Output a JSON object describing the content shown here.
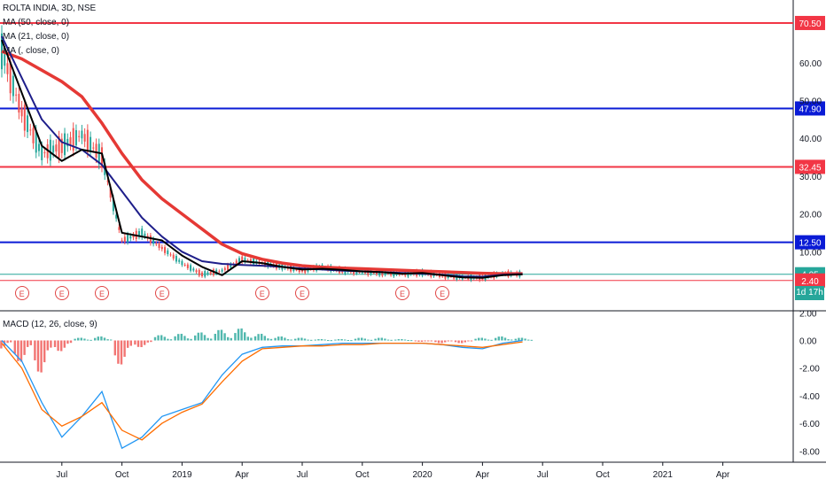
{
  "header": {
    "symbol_line": "ROLTA INDIA, 3D, NSE",
    "indicators": [
      "MA (50, close, 0)",
      "MA (21, close, 0)",
      "MA (, close, 0)"
    ]
  },
  "macd_panel": {
    "label": "MACD (12, 26, close, 9)"
  },
  "earnings_marker_label": "E",
  "earnings_markers": [
    "2018-05",
    "2018-07",
    "2018-09",
    "2018-12",
    "2019-05",
    "2019-07",
    "2019-12",
    "2020-02"
  ],
  "countdown_tag": {
    "text": "1d 17h",
    "color": "#26a69a"
  },
  "colors": {
    "red_line": "#f23645",
    "blue_line": "#0a1bd6",
    "ma_slow": "#e53935",
    "ma_mid": "#1e1e8a",
    "ma_fast": "#000000",
    "up": "#26a69a",
    "down": "#ef5350"
  },
  "chart_data": [
    {
      "type": "line",
      "title": "ROLTA INDIA, 3D, NSE",
      "y_axis_ticks": [
        "60.00",
        "50.00",
        "40.00",
        "30.00",
        "20.00",
        "10.00"
      ],
      "ylim": [
        -2.4,
        75
      ],
      "x_axis_ticks": [
        "Jul",
        "Oct",
        "2019",
        "Apr",
        "Jul",
        "Oct",
        "2020",
        "Apr",
        "Jul",
        "Oct",
        "2021",
        "Apr"
      ],
      "horizontal_levels": [
        {
          "value": 70.5,
          "label": "70.50",
          "color": "#f23645"
        },
        {
          "value": 47.9,
          "label": "47.90",
          "color": "#0a1bd6"
        },
        {
          "value": 32.45,
          "label": "32.45",
          "color": "#f23645"
        },
        {
          "value": 12.5,
          "label": "12.50",
          "color": "#0a1bd6"
        },
        {
          "value": 4.05,
          "label": "4.05",
          "color": "#26a69a"
        },
        {
          "value": 2.4,
          "label": "2.40",
          "color": "#f23645"
        }
      ],
      "series": [
        {
          "name": "MA (50, close, 0)",
          "color": "#e53935",
          "x": [
            "2018-04",
            "2018-05",
            "2018-06",
            "2018-07",
            "2018-08",
            "2018-09",
            "2018-10",
            "2018-11",
            "2018-12",
            "2019-01",
            "2019-02",
            "2019-03",
            "2019-04",
            "2019-05",
            "2019-06",
            "2019-07",
            "2019-08",
            "2019-09",
            "2019-10",
            "2019-11",
            "2019-12",
            "2020-01",
            "2020-02",
            "2020-03",
            "2020-04",
            "2020-05",
            "2020-06"
          ],
          "y": [
            63,
            61,
            58,
            55,
            51,
            44,
            36,
            29,
            24,
            20,
            16,
            12,
            9.5,
            8.0,
            7.0,
            6.3,
            5.9,
            5.7,
            5.5,
            5.3,
            5.1,
            4.9,
            4.7,
            4.5,
            4.3,
            4.2,
            4.2
          ]
        },
        {
          "name": "MA (21, close, 0)",
          "color": "#1e1e8a",
          "x": [
            "2018-04",
            "2018-05",
            "2018-06",
            "2018-07",
            "2018-08",
            "2018-09",
            "2018-10",
            "2018-11",
            "2018-12",
            "2019-01",
            "2019-02",
            "2019-03",
            "2019-04",
            "2019-05",
            "2019-06",
            "2019-07",
            "2019-08",
            "2019-09",
            "2019-10",
            "2019-11",
            "2019-12",
            "2020-01",
            "2020-02",
            "2020-03",
            "2020-04",
            "2020-05",
            "2020-06"
          ],
          "y": [
            67,
            56,
            45,
            39,
            37,
            33,
            26,
            19,
            14,
            10,
            7.5,
            6.8,
            6.5,
            6.3,
            6.0,
            5.6,
            5.3,
            5.0,
            4.8,
            4.6,
            4.4,
            4.2,
            3.9,
            3.5,
            3.4,
            3.9,
            4.1
          ]
        },
        {
          "name": "MA (, close, 0)",
          "color": "#000000",
          "x": [
            "2018-04",
            "2018-05",
            "2018-06",
            "2018-07",
            "2018-08",
            "2018-09",
            "2018-10",
            "2018-11",
            "2018-12",
            "2019-01",
            "2019-02",
            "2019-03",
            "2019-04",
            "2019-05",
            "2019-06",
            "2019-07",
            "2019-08",
            "2019-09",
            "2019-10",
            "2019-11",
            "2019-12",
            "2020-01",
            "2020-02",
            "2020-03",
            "2020-04",
            "2020-05",
            "2020-06"
          ],
          "y": [
            66,
            52,
            38,
            34,
            37,
            36,
            15,
            14,
            13,
            9.0,
            6.0,
            3.8,
            7.5,
            7.0,
            6.0,
            5.3,
            5.5,
            5.2,
            4.8,
            4.6,
            4.2,
            4.4,
            3.8,
            3.2,
            3.1,
            3.8,
            4.05
          ]
        }
      ],
      "price_path": {
        "x": [
          "2018-04",
          "2018-05",
          "2018-06",
          "2018-07",
          "2018-08",
          "2018-09",
          "2018-10",
          "2018-11",
          "2018-12",
          "2019-01",
          "2019-02",
          "2019-03",
          "2019-04",
          "2019-05",
          "2019-06",
          "2019-07",
          "2019-08",
          "2019-09",
          "2019-10",
          "2019-11",
          "2019-12",
          "2020-01",
          "2020-02",
          "2020-03",
          "2020-04",
          "2020-05",
          "2020-06"
        ],
        "y": [
          63,
          47,
          36,
          38,
          41,
          35,
          13,
          15,
          11,
          7,
          4,
          5,
          8,
          7,
          6,
          5,
          6,
          5,
          4.6,
          4.4,
          4.1,
          4.4,
          3.7,
          3.2,
          3.1,
          4.2,
          4.05
        ]
      }
    },
    {
      "type": "line",
      "title": "MACD (12, 26, close, 9)",
      "y_axis_ticks": [
        "2.00",
        "0.00",
        "-2.00",
        "-4.00",
        "-6.00",
        "-8.00"
      ],
      "ylim": [
        -9,
        2.4
      ],
      "series": [
        {
          "name": "MACD",
          "color": "#2196f3",
          "x": [
            "2018-04",
            "2018-05",
            "2018-06",
            "2018-07",
            "2018-08",
            "2018-09",
            "2018-10",
            "2018-11",
            "2018-12",
            "2019-01",
            "2019-02",
            "2019-03",
            "2019-04",
            "2019-05",
            "2019-06",
            "2019-07",
            "2019-08",
            "2019-09",
            "2019-10",
            "2019-11",
            "2019-12",
            "2020-01",
            "2020-02",
            "2020-03",
            "2020-04",
            "2020-05",
            "2020-06"
          ],
          "y": [
            0,
            -1.5,
            -4.5,
            -7,
            -5.5,
            -3.7,
            -7.8,
            -7,
            -5.5,
            -5,
            -4.5,
            -2.5,
            -1.0,
            -0.5,
            -0.4,
            -0.4,
            -0.3,
            -0.2,
            -0.2,
            -0.2,
            -0.2,
            -0.2,
            -0.3,
            -0.5,
            -0.6,
            -0.2,
            0
          ]
        },
        {
          "name": "Signal",
          "color": "#ff6d00",
          "x": [
            "2018-04",
            "2018-05",
            "2018-06",
            "2018-07",
            "2018-08",
            "2018-09",
            "2018-10",
            "2018-11",
            "2018-12",
            "2019-01",
            "2019-02",
            "2019-03",
            "2019-04",
            "2019-05",
            "2019-06",
            "2019-07",
            "2019-08",
            "2019-09",
            "2019-10",
            "2019-11",
            "2019-12",
            "2020-01",
            "2020-02",
            "2020-03",
            "2020-04",
            "2020-05",
            "2020-06"
          ],
          "y": [
            -0.2,
            -2,
            -5,
            -6.2,
            -5.5,
            -4.5,
            -6.5,
            -7.2,
            -6,
            -5.2,
            -4.6,
            -3,
            -1.5,
            -0.6,
            -0.5,
            -0.4,
            -0.4,
            -0.3,
            -0.3,
            -0.2,
            -0.2,
            -0.2,
            -0.3,
            -0.4,
            -0.5,
            -0.3,
            -0.1
          ]
        }
      ],
      "histogram": {
        "x": [
          "2018-04",
          "2018-05",
          "2018-06",
          "2018-07",
          "2018-08",
          "2018-09",
          "2018-10",
          "2018-11",
          "2018-12",
          "2019-01",
          "2019-02",
          "2019-03",
          "2019-04",
          "2019-05",
          "2019-06",
          "2019-07",
          "2019-08",
          "2019-09",
          "2019-10",
          "2019-11",
          "2019-12",
          "2020-01",
          "2020-02",
          "2020-03",
          "2020-04",
          "2020-05",
          "2020-06"
        ],
        "y": [
          -0.6,
          -1.6,
          -2.4,
          -0.8,
          0.2,
          0.3,
          -1.8,
          -0.5,
          0.4,
          0.5,
          0.6,
          0.8,
          0.9,
          0.5,
          0.3,
          0.2,
          0.1,
          0.1,
          0.2,
          0.2,
          0.1,
          -0.1,
          -0.2,
          -0.2,
          0.2,
          0.3,
          0.2
        ]
      }
    }
  ]
}
